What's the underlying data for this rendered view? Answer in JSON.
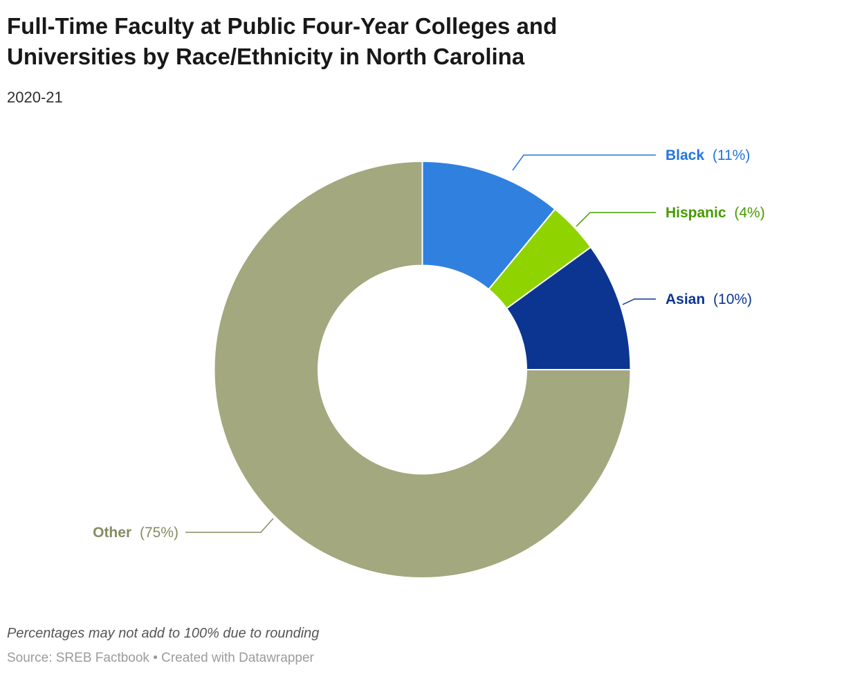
{
  "header": {
    "title_lines": [
      "Full-Time Faculty at Public Four-Year Colleges and",
      "Universities by Race/Ethnicity in North Carolina"
    ],
    "subtitle": "2020-21"
  },
  "footer": {
    "note": "Percentages may not add to 100% due to rounding",
    "source": "Source: SREB Factbook • Created with Datawrapper"
  },
  "chart_data": {
    "type": "pie",
    "variant": "donut",
    "title": "Full-Time Faculty at Public Four-Year Colleges and Universities by Race/Ethnicity in North Carolina",
    "subtitle": "2020-21",
    "start_angle_deg": 0,
    "direction": "clockwise",
    "inner_radius_ratio": 0.5,
    "separator_color": "#ffffff",
    "slices": [
      {
        "name": "Black",
        "value": 11,
        "pct_label": "(11%)",
        "color": "#3080E0",
        "label_color": "#2276DF"
      },
      {
        "name": "Hispanic",
        "value": 4,
        "pct_label": "(4%)",
        "color": "#8FD400",
        "label_color": "#469A00"
      },
      {
        "name": "Asian",
        "value": 10,
        "pct_label": "(10%)",
        "color": "#0B3590",
        "label_color": "#0B3590"
      },
      {
        "name": "Other",
        "value": 75,
        "pct_label": "(75%)",
        "color": "#A3A87E",
        "label_color": "#878B62"
      }
    ],
    "note": "Percentages may not add to 100% due to rounding",
    "source": "Source: SREB Factbook • Created with Datawrapper"
  }
}
